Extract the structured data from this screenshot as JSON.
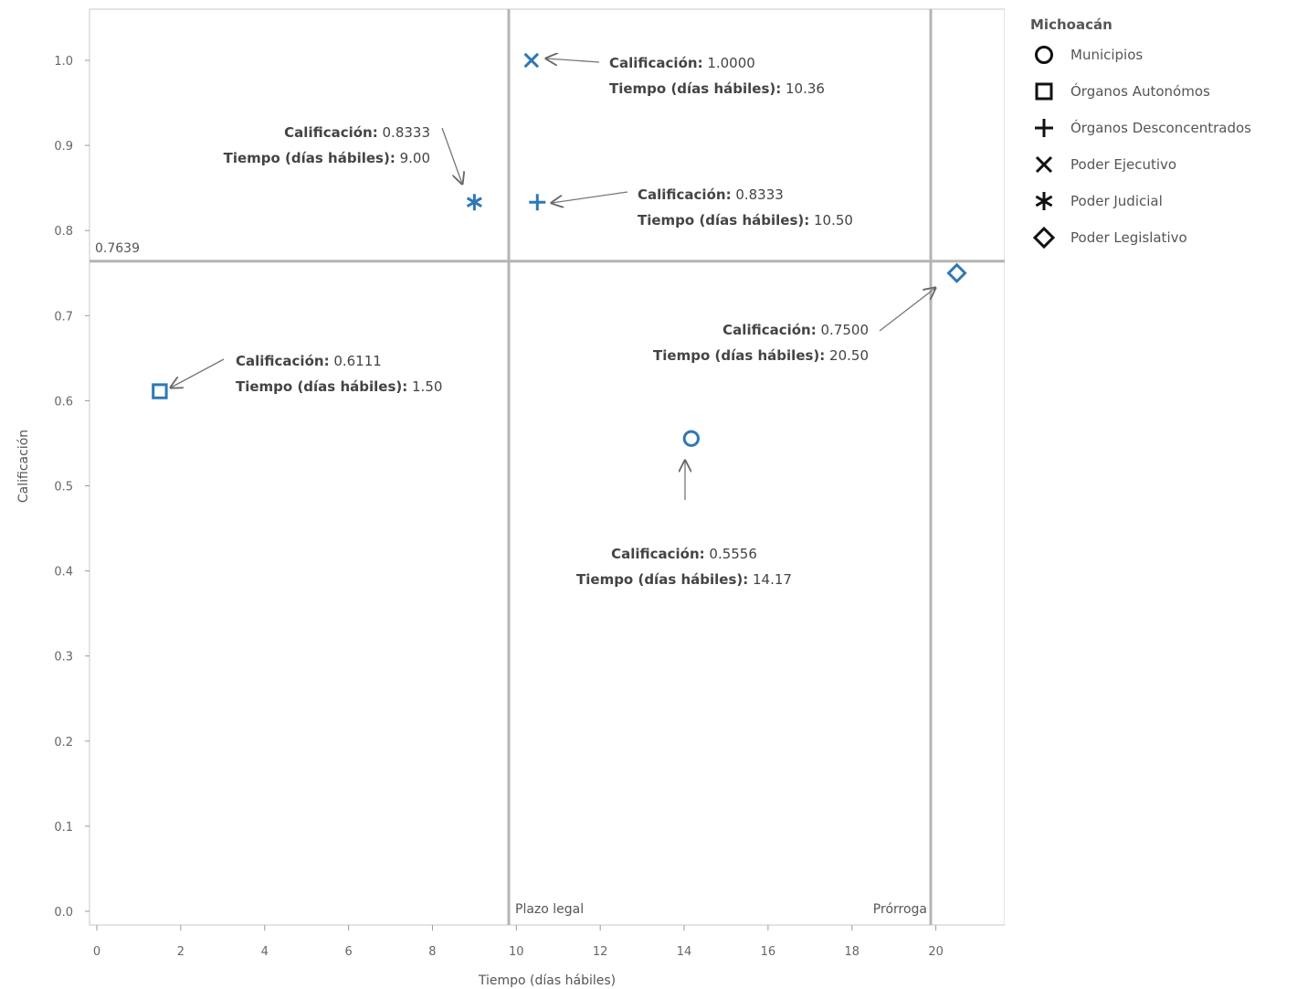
{
  "chart_data": {
    "type": "scatter",
    "title": "",
    "xlabel": "Tiempo (días hábiles)",
    "ylabel": "Calificación",
    "xlim": [
      0,
      22
    ],
    "ylim": [
      0,
      1.05
    ],
    "x_ticks": [
      0,
      2,
      4,
      6,
      8,
      10,
      12,
      14,
      16,
      18,
      20
    ],
    "x_tick_labels": [
      "0",
      "2",
      "4",
      "6",
      "8",
      "10",
      "12",
      "14",
      "16",
      "18",
      "20"
    ],
    "y_ticks": [
      0,
      0.1,
      0.2,
      0.3,
      0.4,
      0.5,
      0.6,
      0.7,
      0.8,
      0.9,
      1.0
    ],
    "y_tick_labels": [
      "0.0",
      "0.1",
      "0.2",
      "0.3",
      "0.4",
      "0.5",
      "0.6",
      "0.7",
      "0.8",
      "0.9",
      "1.0"
    ],
    "point_color": "#2e78b5",
    "reference_lines": [
      {
        "axis": "y",
        "value": 0.7639,
        "label": "0.7639"
      },
      {
        "axis": "x",
        "value": 10,
        "label": "Plazo legal"
      },
      {
        "axis": "x",
        "value": 20,
        "label": "Prórroga"
      }
    ],
    "points": [
      {
        "name": "Municipios",
        "marker": "circle",
        "x": 14.17,
        "y": 0.5556,
        "ann_line1_label": "Calificación:",
        "ann_line1_value": "0.5556",
        "ann_line2_label": "Tiempo (días hábiles):",
        "ann_line2_value": "14.17"
      },
      {
        "name": "Órganos Autonómos",
        "marker": "square",
        "x": 1.5,
        "y": 0.6111,
        "ann_line1_label": "Calificación:",
        "ann_line1_value": "0.6111",
        "ann_line2_label": "Tiempo (días hábiles):",
        "ann_line2_value": "1.50"
      },
      {
        "name": "Órganos Desconcentrados",
        "marker": "plus",
        "x": 10.5,
        "y": 0.8333,
        "ann_line1_label": "Calificación:",
        "ann_line1_value": "0.8333",
        "ann_line2_label": "Tiempo (días hábiles):",
        "ann_line2_value": "10.50"
      },
      {
        "name": "Poder Ejecutivo",
        "marker": "x",
        "x": 10.36,
        "y": 1.0,
        "ann_line1_label": "Calificación:",
        "ann_line1_value": "1.0000",
        "ann_line2_label": "Tiempo (días hábiles):",
        "ann_line2_value": "10.36"
      },
      {
        "name": "Poder Judicial",
        "marker": "asterisk",
        "x": 9.0,
        "y": 0.8333,
        "ann_line1_label": "Calificación:",
        "ann_line1_value": "0.8333",
        "ann_line2_label": "Tiempo (días hábiles):",
        "ann_line2_value": "9.00"
      },
      {
        "name": "Poder Legislativo",
        "marker": "diamond",
        "x": 20.5,
        "y": 0.75,
        "ann_line1_label": "Calificación:",
        "ann_line1_value": "0.7500",
        "ann_line2_label": "Tiempo (días hábiles):",
        "ann_line2_value": "20.50"
      }
    ],
    "legend": {
      "title": "Michoacán",
      "placement": "right",
      "items": [
        {
          "label": "Municipios",
          "marker": "circle"
        },
        {
          "label": "Órganos Autonómos",
          "marker": "square"
        },
        {
          "label": "Órganos Desconcentrados",
          "marker": "plus"
        },
        {
          "label": "Poder Ejecutivo",
          "marker": "x"
        },
        {
          "label": "Poder Judicial",
          "marker": "asterisk"
        },
        {
          "label": "Poder Legislativo",
          "marker": "diamond"
        }
      ]
    }
  }
}
